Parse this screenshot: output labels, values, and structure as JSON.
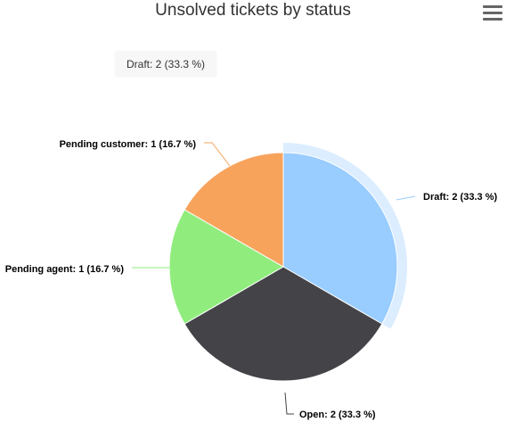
{
  "header": {
    "menu_icon": "hamburger-menu-icon"
  },
  "tooltip": {
    "text": "Draft: 2 (33.3 %)"
  },
  "chart_data": {
    "type": "pie",
    "title": "Unsolved tickets by status",
    "slices": [
      {
        "name": "Draft",
        "value": 2,
        "percent": 33.3,
        "label": "Draft: 2 (33.3 %)",
        "color": "#99ccff",
        "hovered": true
      },
      {
        "name": "Open",
        "value": 2,
        "percent": 33.3,
        "label": "Open: 2 (33.3 %)",
        "color": "#434348"
      },
      {
        "name": "Pending agent",
        "value": 1,
        "percent": 16.7,
        "label": "Pending agent: 1 (16.7 %)",
        "color": "#90ed7d"
      },
      {
        "name": "Pending customer",
        "value": 1,
        "percent": 16.7,
        "label": "Pending customer: 1 (16.7 %)",
        "color": "#f7a35c"
      }
    ]
  }
}
